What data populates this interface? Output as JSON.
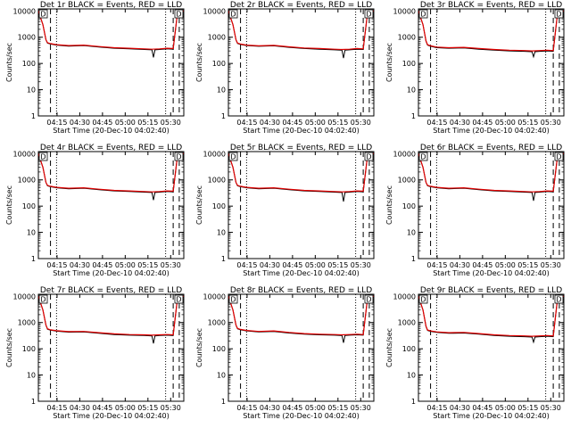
{
  "colors": {
    "events": "#000000",
    "lld": "#e00000",
    "background": "#ffffff",
    "axes": "#000000"
  },
  "shared": {
    "xlabel": "Start Time (20-Dec-10 04:02:40)",
    "ylabel": "Counts/sec",
    "xticks": [
      "04:15",
      "04:30",
      "04:45",
      "05:00",
      "05:15",
      "05:30"
    ],
    "yticks": [
      "1",
      "10",
      "100",
      "1000",
      "10000"
    ],
    "box_left": "D",
    "box_right": "D"
  },
  "chart_data": [
    {
      "type": "line",
      "title": "Det 1r BLACK = Events, RED = LLD",
      "y_scale": "log",
      "ylim": [
        1,
        12000
      ],
      "xlim_minutes": [
        0,
        96
      ],
      "dotted_lines": [
        12,
        84
      ],
      "dashed_lines": [
        8,
        89,
        93
      ],
      "series": [
        {
          "name": "Events",
          "color": "black",
          "x": [
            0,
            3,
            5,
            6,
            8,
            12,
            20,
            30,
            40,
            50,
            60,
            70,
            75,
            76,
            77,
            80,
            85,
            89,
            92,
            94,
            96
          ],
          "y": [
            10000,
            3000,
            800,
            600,
            550,
            500,
            460,
            480,
            420,
            380,
            360,
            340,
            330,
            170,
            330,
            340,
            360,
            350,
            10000,
            10000,
            10000
          ]
        },
        {
          "name": "LLD",
          "color": "red",
          "x": [
            0,
            3,
            5,
            6,
            8,
            12,
            20,
            30,
            40,
            50,
            60,
            70,
            75,
            80,
            85,
            89,
            92,
            94,
            96
          ],
          "y": [
            10000,
            3000,
            800,
            620,
            570,
            520,
            480,
            500,
            440,
            400,
            380,
            360,
            350,
            360,
            380,
            370,
            10000,
            10000,
            10000
          ]
        }
      ]
    },
    {
      "type": "line",
      "title": "Det 2r BLACK = Events, RED = LLD",
      "y_scale": "log",
      "ylim": [
        1,
        12000
      ],
      "xlim_minutes": [
        0,
        96
      ],
      "dotted_lines": [
        12,
        84
      ],
      "dashed_lines": [
        8,
        89,
        93
      ],
      "series": [
        {
          "name": "Events",
          "color": "black",
          "x": [
            0,
            3,
            5,
            6,
            8,
            12,
            20,
            30,
            40,
            50,
            60,
            70,
            75,
            76,
            77,
            80,
            85,
            89,
            92,
            94,
            96
          ],
          "y": [
            10000,
            3000,
            800,
            580,
            530,
            480,
            450,
            470,
            410,
            370,
            350,
            330,
            320,
            160,
            320,
            330,
            350,
            340,
            10000,
            10000,
            10000
          ]
        },
        {
          "name": "LLD",
          "color": "red",
          "x": [
            0,
            3,
            5,
            6,
            8,
            12,
            20,
            30,
            40,
            50,
            60,
            70,
            75,
            80,
            85,
            89,
            92,
            94,
            96
          ],
          "y": [
            10000,
            3000,
            800,
            600,
            550,
            500,
            470,
            490,
            430,
            390,
            370,
            350,
            340,
            350,
            370,
            360,
            10000,
            10000,
            10000
          ]
        }
      ]
    },
    {
      "type": "line",
      "title": "Det 3r BLACK = Events, RED = LLD",
      "y_scale": "log",
      "ylim": [
        1,
        12000
      ],
      "xlim_minutes": [
        0,
        96
      ],
      "dotted_lines": [
        12,
        84
      ],
      "dashed_lines": [
        8,
        89,
        93
      ],
      "series": [
        {
          "name": "Events",
          "color": "black",
          "x": [
            0,
            3,
            5,
            6,
            8,
            12,
            20,
            30,
            40,
            50,
            60,
            70,
            75,
            76,
            77,
            80,
            85,
            89,
            92,
            94,
            96
          ],
          "y": [
            10000,
            3000,
            700,
            500,
            450,
            400,
            380,
            390,
            350,
            320,
            300,
            290,
            280,
            180,
            280,
            290,
            300,
            290,
            10000,
            10000,
            10000
          ]
        },
        {
          "name": "LLD",
          "color": "red",
          "x": [
            0,
            3,
            5,
            6,
            8,
            12,
            20,
            30,
            40,
            50,
            60,
            70,
            75,
            80,
            85,
            89,
            92,
            94,
            96
          ],
          "y": [
            10000,
            3000,
            720,
            520,
            470,
            420,
            400,
            410,
            370,
            340,
            320,
            310,
            300,
            310,
            320,
            310,
            10000,
            10000,
            10000
          ]
        }
      ]
    },
    {
      "type": "line",
      "title": "Det 4r BLACK = Events, RED = LLD",
      "y_scale": "log",
      "ylim": [
        1,
        12000
      ],
      "xlim_minutes": [
        0,
        96
      ],
      "dotted_lines": [
        12,
        84
      ],
      "dashed_lines": [
        8,
        89,
        93
      ],
      "series": [
        {
          "name": "Events",
          "color": "black",
          "x": [
            0,
            3,
            5,
            6,
            8,
            12,
            20,
            30,
            40,
            50,
            60,
            70,
            75,
            76,
            77,
            80,
            85,
            89,
            92,
            94,
            96
          ],
          "y": [
            10000,
            3000,
            800,
            600,
            550,
            500,
            460,
            480,
            420,
            380,
            360,
            340,
            330,
            170,
            330,
            340,
            360,
            350,
            10000,
            10000,
            10000
          ]
        },
        {
          "name": "LLD",
          "color": "red",
          "x": [
            0,
            3,
            5,
            6,
            8,
            12,
            20,
            30,
            40,
            50,
            60,
            70,
            75,
            80,
            85,
            89,
            92,
            94,
            96
          ],
          "y": [
            10000,
            3000,
            800,
            620,
            570,
            520,
            480,
            500,
            440,
            400,
            380,
            360,
            350,
            360,
            380,
            370,
            10000,
            10000,
            10000
          ]
        }
      ]
    },
    {
      "type": "line",
      "title": "Det 5r BLACK = Events, RED = LLD",
      "y_scale": "log",
      "ylim": [
        1,
        12000
      ],
      "xlim_minutes": [
        0,
        96
      ],
      "dotted_lines": [
        12,
        84
      ],
      "dashed_lines": [
        8,
        89,
        93
      ],
      "series": [
        {
          "name": "Events",
          "color": "black",
          "x": [
            0,
            3,
            5,
            6,
            8,
            12,
            20,
            30,
            40,
            50,
            60,
            70,
            75,
            76,
            77,
            80,
            85,
            89,
            92,
            94,
            96
          ],
          "y": [
            10000,
            3000,
            800,
            600,
            550,
            500,
            460,
            480,
            420,
            380,
            360,
            340,
            330,
            150,
            330,
            340,
            360,
            350,
            10000,
            10000,
            10000
          ]
        },
        {
          "name": "LLD",
          "color": "red",
          "x": [
            0,
            3,
            5,
            6,
            8,
            12,
            20,
            30,
            40,
            50,
            60,
            70,
            75,
            80,
            85,
            89,
            92,
            94,
            96
          ],
          "y": [
            10000,
            3000,
            800,
            620,
            570,
            520,
            480,
            500,
            440,
            400,
            380,
            360,
            350,
            360,
            380,
            370,
            10000,
            10000,
            10000
          ]
        }
      ]
    },
    {
      "type": "line",
      "title": "Det 6r BLACK = Events, RED = LLD",
      "y_scale": "log",
      "ylim": [
        1,
        12000
      ],
      "xlim_minutes": [
        0,
        96
      ],
      "dotted_lines": [
        12,
        84
      ],
      "dashed_lines": [
        8,
        89,
        93
      ],
      "series": [
        {
          "name": "Events",
          "color": "black",
          "x": [
            0,
            3,
            5,
            6,
            8,
            12,
            20,
            30,
            40,
            50,
            60,
            70,
            75,
            76,
            77,
            80,
            85,
            89,
            92,
            94,
            96
          ],
          "y": [
            10000,
            3000,
            800,
            600,
            550,
            500,
            460,
            480,
            420,
            380,
            360,
            340,
            330,
            160,
            330,
            340,
            360,
            350,
            10000,
            10000,
            10000
          ]
        },
        {
          "name": "LLD",
          "color": "red",
          "x": [
            0,
            3,
            5,
            6,
            8,
            12,
            20,
            30,
            40,
            50,
            60,
            70,
            75,
            80,
            85,
            89,
            92,
            94,
            96
          ],
          "y": [
            10000,
            3000,
            800,
            620,
            570,
            520,
            480,
            500,
            440,
            400,
            380,
            360,
            350,
            360,
            380,
            370,
            10000,
            10000,
            10000
          ]
        }
      ]
    },
    {
      "type": "line",
      "title": "Det 7r BLACK = Events, RED = LLD",
      "y_scale": "log",
      "ylim": [
        1,
        12000
      ],
      "xlim_minutes": [
        0,
        96
      ],
      "dotted_lines": [
        12,
        84
      ],
      "dashed_lines": [
        8,
        89,
        93
      ],
      "series": [
        {
          "name": "Events",
          "color": "black",
          "x": [
            0,
            3,
            5,
            6,
            8,
            12,
            20,
            30,
            40,
            50,
            60,
            70,
            75,
            76,
            77,
            80,
            85,
            89,
            92,
            94,
            96
          ],
          "y": [
            10000,
            3000,
            800,
            560,
            510,
            470,
            430,
            440,
            390,
            350,
            330,
            320,
            310,
            160,
            310,
            320,
            330,
            320,
            10000,
            10000,
            10000
          ]
        },
        {
          "name": "LLD",
          "color": "red",
          "x": [
            0,
            3,
            5,
            6,
            8,
            12,
            20,
            30,
            40,
            50,
            60,
            70,
            75,
            80,
            85,
            89,
            92,
            94,
            96
          ],
          "y": [
            10000,
            3000,
            800,
            580,
            530,
            490,
            450,
            460,
            410,
            370,
            350,
            340,
            330,
            340,
            350,
            340,
            10000,
            10000,
            10000
          ]
        }
      ]
    },
    {
      "type": "line",
      "title": "Det 8r BLACK = Events, RED = LLD",
      "y_scale": "log",
      "ylim": [
        1,
        12000
      ],
      "xlim_minutes": [
        0,
        96
      ],
      "dotted_lines": [
        12,
        84
      ],
      "dashed_lines": [
        8,
        89,
        93
      ],
      "series": [
        {
          "name": "Events",
          "color": "black",
          "x": [
            0,
            3,
            5,
            6,
            8,
            12,
            20,
            30,
            40,
            50,
            60,
            70,
            75,
            76,
            77,
            80,
            85,
            89,
            92,
            94,
            96
          ],
          "y": [
            10000,
            3000,
            800,
            580,
            530,
            480,
            440,
            460,
            400,
            360,
            340,
            330,
            320,
            170,
            320,
            330,
            340,
            330,
            10000,
            10000,
            10000
          ]
        },
        {
          "name": "LLD",
          "color": "red",
          "x": [
            0,
            3,
            5,
            6,
            8,
            12,
            20,
            30,
            40,
            50,
            60,
            70,
            75,
            80,
            85,
            89,
            92,
            94,
            96
          ],
          "y": [
            10000,
            3000,
            800,
            600,
            550,
            500,
            460,
            480,
            420,
            380,
            360,
            350,
            340,
            350,
            360,
            350,
            10000,
            10000,
            10000
          ]
        }
      ]
    },
    {
      "type": "line",
      "title": "Det 9r BLACK = Events, RED = LLD",
      "y_scale": "log",
      "ylim": [
        1,
        12000
      ],
      "xlim_minutes": [
        0,
        96
      ],
      "dotted_lines": [
        12,
        84
      ],
      "dashed_lines": [
        8,
        89,
        93
      ],
      "series": [
        {
          "name": "Events",
          "color": "black",
          "x": [
            0,
            3,
            5,
            6,
            8,
            12,
            20,
            30,
            40,
            50,
            60,
            70,
            75,
            76,
            77,
            80,
            85,
            89,
            92,
            94,
            96
          ],
          "y": [
            10000,
            3000,
            700,
            500,
            460,
            420,
            390,
            400,
            360,
            320,
            300,
            290,
            280,
            180,
            280,
            290,
            300,
            290,
            10000,
            10000,
            10000
          ]
        },
        {
          "name": "LLD",
          "color": "red",
          "x": [
            0,
            3,
            5,
            6,
            8,
            12,
            20,
            30,
            40,
            50,
            60,
            70,
            75,
            80,
            85,
            89,
            92,
            94,
            96
          ],
          "y": [
            10000,
            3000,
            720,
            520,
            480,
            440,
            410,
            420,
            380,
            340,
            320,
            310,
            300,
            310,
            320,
            310,
            10000,
            10000,
            10000
          ]
        }
      ]
    }
  ]
}
